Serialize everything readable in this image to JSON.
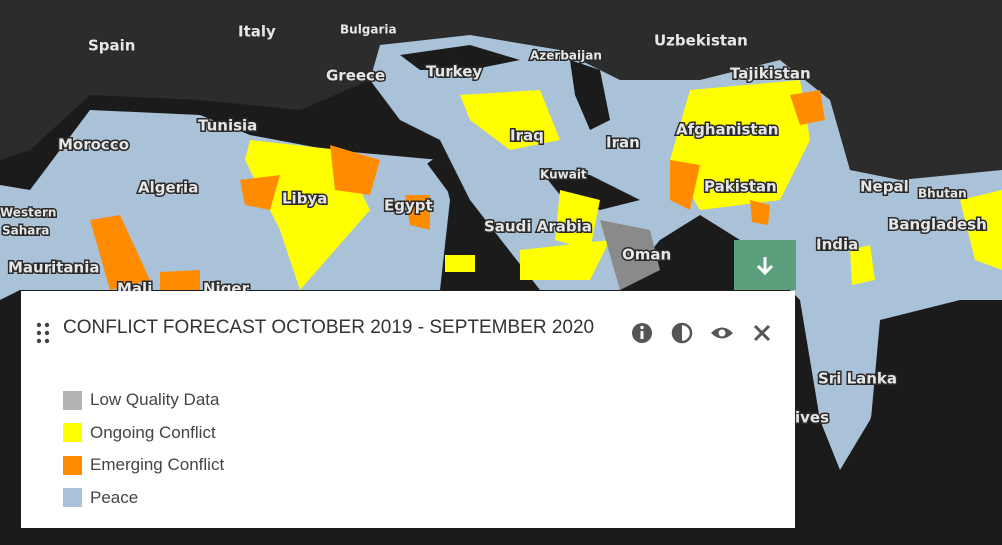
{
  "map": {
    "labels": [
      "Spain",
      "Italy",
      "Bulgaria",
      "Uzbekistan",
      "Azerbaijan",
      "Greece",
      "Turkey",
      "Tajikistan",
      "Tunisia",
      "Morocco",
      "Afghanistan",
      "Iraq",
      "Iran",
      "Algeria",
      "Kuwait",
      "Pakistan",
      "Nepal",
      "Bhutan",
      "Libya",
      "Egypt",
      "Western",
      "Sahara",
      "Saudi Arabia",
      "Bangladesh",
      "India",
      "Oman",
      "Mauritania",
      "Mali",
      "Niger",
      "Sri Lanka",
      "ives"
    ]
  },
  "legend": {
    "title": "CONFLICT FORECAST OCTOBER 2019 - SEPTEMBER 2020",
    "items": [
      {
        "name": "Low Quality Data",
        "color": "#b3b3b3"
      },
      {
        "name": "Ongoing Conflict",
        "color": "#ffff00"
      },
      {
        "name": "Emerging Conflict",
        "color": "#ff8c00"
      },
      {
        "name": "Peace",
        "color": "#a9c2d8"
      }
    ]
  }
}
